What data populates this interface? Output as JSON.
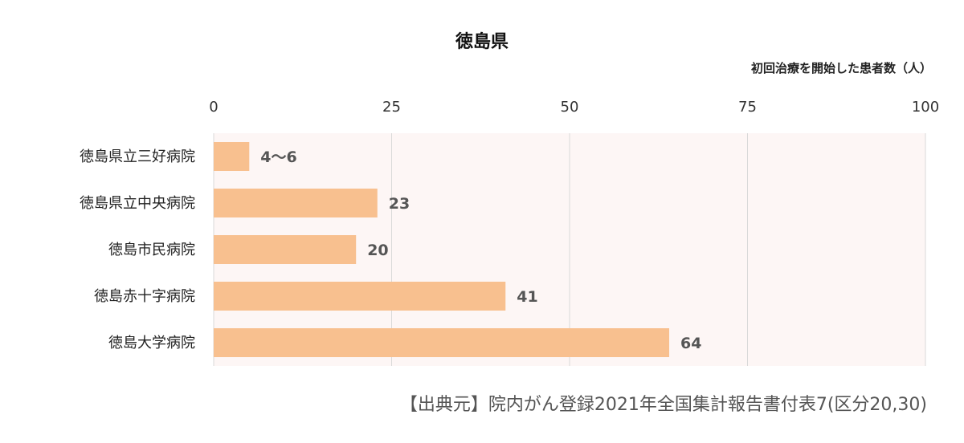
{
  "chart_data": {
    "type": "bar",
    "orientation": "horizontal",
    "title": "徳島県",
    "unit_label": "初回治療を開始した患者数（人）",
    "categories": [
      "徳島県立三好病院",
      "徳島県立中央病院",
      "徳島市民病院",
      "徳島赤十字病院",
      "徳島大学病院"
    ],
    "values": [
      5,
      23,
      20,
      41,
      64
    ],
    "value_labels": [
      "4～6",
      "23",
      "20",
      "41",
      "64"
    ],
    "xlim": [
      0,
      100
    ],
    "ticks": [
      0,
      25,
      50,
      75,
      100
    ],
    "tick_labels": [
      "0",
      "25",
      "50",
      "75",
      "100"
    ],
    "axis_position": "top",
    "grid": true,
    "bar_color": "#F8C08F",
    "plot_background": "#FDF6F5",
    "grid_color": "#D9D9D9",
    "source": "【出典元】院内がん登録2021年全国集計報告書付表7(区分20,30)"
  }
}
